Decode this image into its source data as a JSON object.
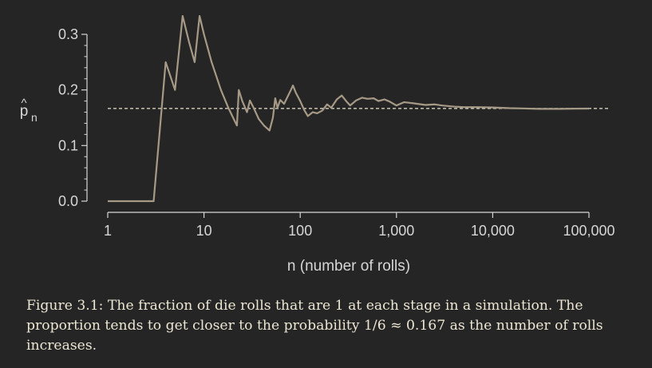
{
  "chart_data": {
    "type": "line",
    "xlabel": "n (number of rolls)",
    "ylabel_main": "p",
    "ylabel_hat": "^",
    "ylabel_sub": "n",
    "x_scale": "log",
    "xlim": [
      1,
      100000
    ],
    "ylim": [
      0.0,
      0.3
    ],
    "x_ticks": [
      1,
      10,
      100,
      1000,
      10000,
      100000
    ],
    "x_tick_labels": [
      "1",
      "10",
      "100",
      "1,000",
      "10,000",
      "100,000"
    ],
    "y_ticks": [
      0.0,
      0.1,
      0.2,
      0.3
    ],
    "y_tick_labels": [
      "0.0",
      "0.1",
      "0.2",
      "0.3"
    ],
    "reference_line": {
      "y": 0.1667,
      "style": "dashed"
    },
    "grid": false,
    "series": [
      {
        "color": "#a69a87",
        "points": [
          [
            1,
            0.0
          ],
          [
            2,
            0.0
          ],
          [
            3,
            0.0
          ],
          [
            4,
            0.25
          ],
          [
            5,
            0.2
          ],
          [
            6,
            0.333
          ],
          [
            7,
            0.286
          ],
          [
            8,
            0.25
          ],
          [
            9,
            0.333
          ],
          [
            10,
            0.3
          ],
          [
            12,
            0.25
          ],
          [
            15,
            0.2
          ],
          [
            18,
            0.167
          ],
          [
            21,
            0.143
          ],
          [
            22,
            0.136
          ],
          [
            23,
            0.2
          ],
          [
            25,
            0.18
          ],
          [
            28,
            0.16
          ],
          [
            30,
            0.181
          ],
          [
            33,
            0.167
          ],
          [
            37,
            0.148
          ],
          [
            42,
            0.136
          ],
          [
            48,
            0.127
          ],
          [
            52,
            0.15
          ],
          [
            55,
            0.185
          ],
          [
            58,
            0.168
          ],
          [
            62,
            0.182
          ],
          [
            68,
            0.175
          ],
          [
            75,
            0.19
          ],
          [
            80,
            0.2
          ],
          [
            84,
            0.208
          ],
          [
            90,
            0.195
          ],
          [
            100,
            0.18
          ],
          [
            110,
            0.164
          ],
          [
            120,
            0.153
          ],
          [
            135,
            0.16
          ],
          [
            150,
            0.158
          ],
          [
            170,
            0.163
          ],
          [
            190,
            0.174
          ],
          [
            210,
            0.168
          ],
          [
            240,
            0.183
          ],
          [
            270,
            0.19
          ],
          [
            300,
            0.18
          ],
          [
            330,
            0.172
          ],
          [
            380,
            0.181
          ],
          [
            440,
            0.186
          ],
          [
            500,
            0.184
          ],
          [
            580,
            0.185
          ],
          [
            650,
            0.18
          ],
          [
            750,
            0.183
          ],
          [
            850,
            0.179
          ],
          [
            1000,
            0.172
          ],
          [
            1200,
            0.178
          ],
          [
            1500,
            0.176
          ],
          [
            2000,
            0.173
          ],
          [
            2500,
            0.174
          ],
          [
            3000,
            0.172
          ],
          [
            4000,
            0.17
          ],
          [
            5000,
            0.169
          ],
          [
            7000,
            0.169
          ],
          [
            10000,
            0.1685
          ],
          [
            15000,
            0.1672
          ],
          [
            20000,
            0.1668
          ],
          [
            30000,
            0.166
          ],
          [
            50000,
            0.166
          ],
          [
            70000,
            0.1663
          ],
          [
            100000,
            0.1665
          ]
        ]
      }
    ]
  },
  "caption": "Figure 3.1: The fraction of die rolls that are 1 at each stage in a simulation. The proportion tends to get closer to the probability 1/6 ≈ 0.167 as the number of rolls increases.",
  "colors": {
    "background": "#252525",
    "line": "#a69a87",
    "axis": "#d6d6d6",
    "reference": "#e8e2cf",
    "caption": "#ece6d3"
  }
}
